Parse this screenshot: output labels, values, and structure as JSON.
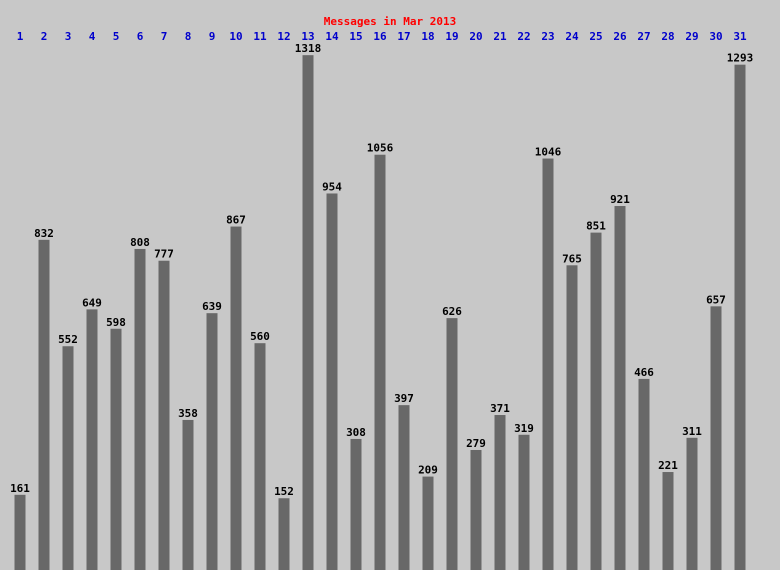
{
  "chart_data": {
    "type": "bar",
    "title": "Messages in Mar 2013",
    "categories": [
      "1",
      "2",
      "3",
      "4",
      "5",
      "6",
      "7",
      "8",
      "9",
      "10",
      "11",
      "12",
      "13",
      "14",
      "15",
      "16",
      "17",
      "18",
      "19",
      "20",
      "21",
      "22",
      "23",
      "24",
      "25",
      "26",
      "27",
      "28",
      "29",
      "30",
      "31"
    ],
    "values": [
      161,
      832,
      552,
      649,
      598,
      808,
      777,
      358,
      639,
      867,
      560,
      152,
      1318,
      954,
      308,
      1056,
      397,
      209,
      626,
      279,
      371,
      319,
      1046,
      765,
      851,
      921,
      466,
      221,
      311,
      657,
      1293
    ],
    "color": "#686868"
  }
}
